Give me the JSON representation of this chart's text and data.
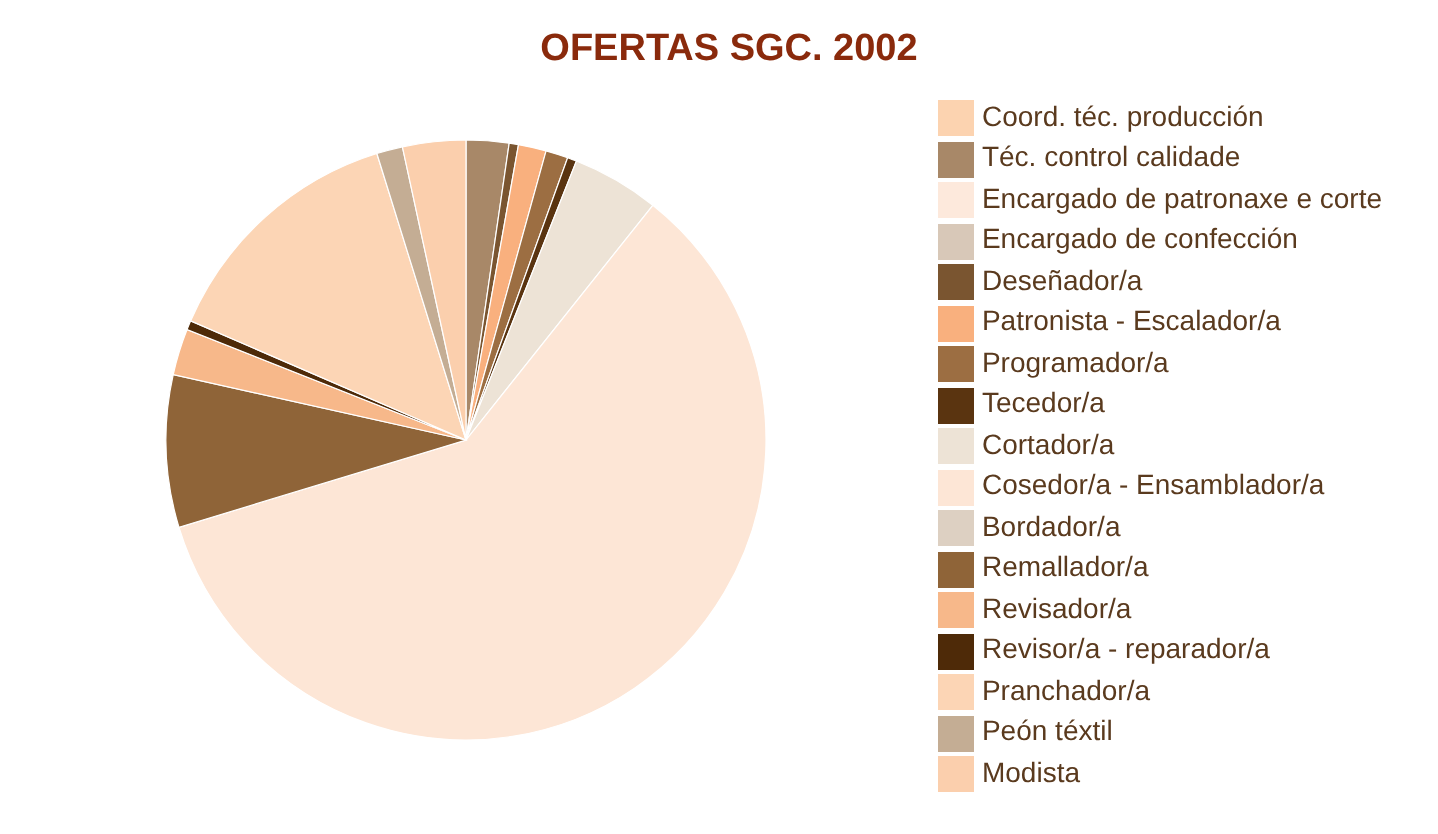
{
  "chart_data": {
    "type": "pie",
    "title": "OFERTAS SGC. 2002",
    "categories": [
      "Coord. téc. producción",
      "Téc. control calidade",
      "Encargado de patronaxe e corte",
      "Encargado de confección",
      "Deseñador/a",
      "Patronista - Escalador/a",
      "Programador/a",
      "Tecedor/a",
      "Cortador/a",
      "Cosedor/a - Ensamblador/a",
      "Bordador/a",
      "Remallador/a",
      "Revisador/a",
      "Revisor/a - reparador/a",
      "Pranchador/a",
      "Peón téxtil",
      "Modista"
    ],
    "values": [
      null,
      2.3,
      null,
      null,
      0.5,
      1.5,
      1.2,
      0.5,
      4.7,
      59.6,
      null,
      8.2,
      2.5,
      0.5,
      13.7,
      1.4,
      3.4
    ],
    "colors": [
      "#fcd3b0",
      "#a88868",
      "#fde9dc",
      "#d8c8b8",
      "#7a5530",
      "#f9b07e",
      "#9c6e42",
      "#5a3410",
      "#ede3d6",
      "#fde6d6",
      "#ddd0c2",
      "#8f6438",
      "#f7b88a",
      "#4e2a08",
      "#fcd5b5",
      "#c4ad94",
      "#fbcfad"
    ],
    "legend": "right"
  }
}
